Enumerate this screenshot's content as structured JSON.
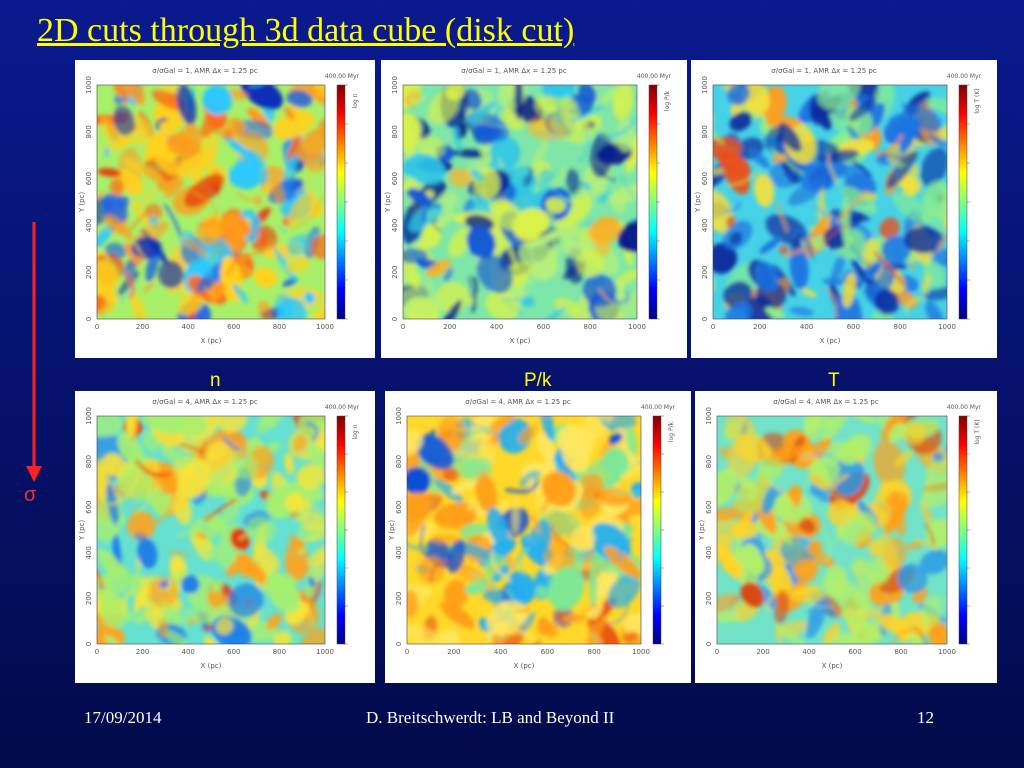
{
  "slide": {
    "title": "2D cuts through 3d data cube (disk cut)",
    "sigma_label": "σ",
    "column_labels": {
      "n": "n",
      "pk": "P/k",
      "t": "T"
    },
    "footer": {
      "date": "17/09/2014",
      "author": "D. Breitschwerdt: LB and Beyond II",
      "page": "12"
    }
  },
  "plots": {
    "time_label": "400.00 Myr",
    "x_axis_label": "X (pc)",
    "y_axis_label": "Y (pc)",
    "ticks": [
      "0",
      "200",
      "400",
      "600",
      "800",
      "1000"
    ],
    "row1_header": "σ/σGal = 1, AMR Δx = 1.25 pc",
    "row2_header": "σ/σGal = 4, AMR Δx = 1.25 pc",
    "colorbar_labels": {
      "n": "log n",
      "pk": "log P/k",
      "t": "log T (K)"
    },
    "colormap": [
      "#00007f",
      "#0000ff",
      "#0080ff",
      "#00ffff",
      "#80ff80",
      "#ffff00",
      "#ff8000",
      "#ff0000",
      "#7f0000"
    ],
    "field_mood": {
      "row1_n": "mixed yellow-orange with blue filaments",
      "row1_pk": "green-cyan with dark blue cavities",
      "row1_t": "cyan-blue with yellow/orange hot patches",
      "row2_n": "cyan-green with orange clumps",
      "row2_pk": "yellow-orange with blue pockets",
      "row2_t": "cyan-green with orange clumps"
    }
  }
}
